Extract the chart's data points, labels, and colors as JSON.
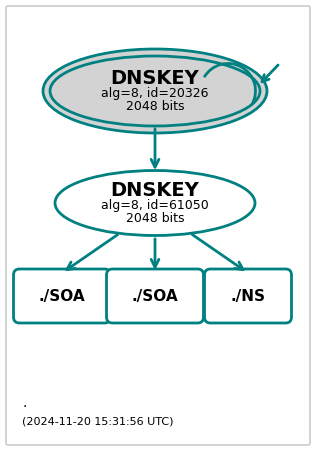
{
  "teal_color": "#008080",
  "bg_color": "#ffffff",
  "border_color": "#cccccc",
  "node1_label": "DNSKEY\nalg=8, id=20326\n2048 bits",
  "node2_label": "DNSKEY\nalg=8, id=61050\n2048 bits",
  "node3_label": "./SOA",
  "node4_label": "./SOA",
  "node5_label": "./NS",
  "node1_fill": "#d3d3d3",
  "node2_fill": "#ffffff",
  "bottom_fill": "#ffffff",
  "timestamp": "(2024-11-20 15:31:56 UTC)",
  "dot": "."
}
